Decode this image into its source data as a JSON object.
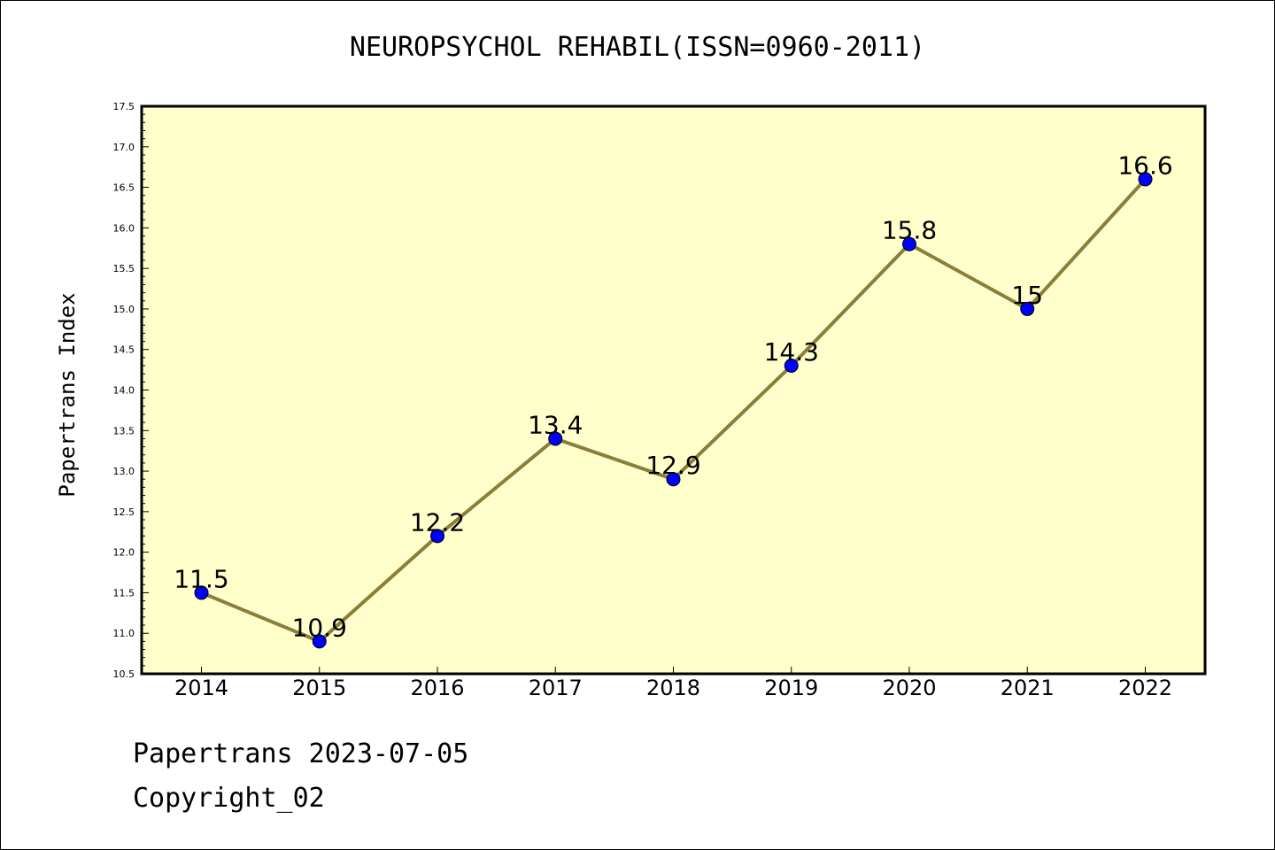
{
  "footer": {
    "date_text": "Papertrans 2023-07-05",
    "copyright_text": "Copyright_02"
  },
  "colors": {
    "plot_background": "#ffffcc",
    "line": "#8b7d3a",
    "marker": "#0000ff"
  },
  "chart_data": {
    "type": "line",
    "title": "NEUROPSYCHOL REHABIL(ISSN=0960-2011)",
    "xlabel": "",
    "ylabel": "Papertrans Index",
    "categories": [
      "2014",
      "2015",
      "2016",
      "2017",
      "2018",
      "2019",
      "2020",
      "2021",
      "2022"
    ],
    "values": [
      11.5,
      10.9,
      12.2,
      13.4,
      12.9,
      14.3,
      15.8,
      15,
      16.6
    ],
    "data_labels": [
      "11.5",
      "10.9",
      "12.2",
      "13.4",
      "12.9",
      "14.3",
      "15.8",
      "15",
      "16.6"
    ],
    "ylim": [
      10.5,
      17.5
    ],
    "yticks": [
      "10.5",
      "11.0",
      "11.5",
      "12.0",
      "12.5",
      "13.0",
      "13.5",
      "14.0",
      "14.5",
      "15.0",
      "15.5",
      "16.0",
      "16.5",
      "17.0",
      "17.5"
    ],
    "grid": false,
    "legend": "none"
  }
}
